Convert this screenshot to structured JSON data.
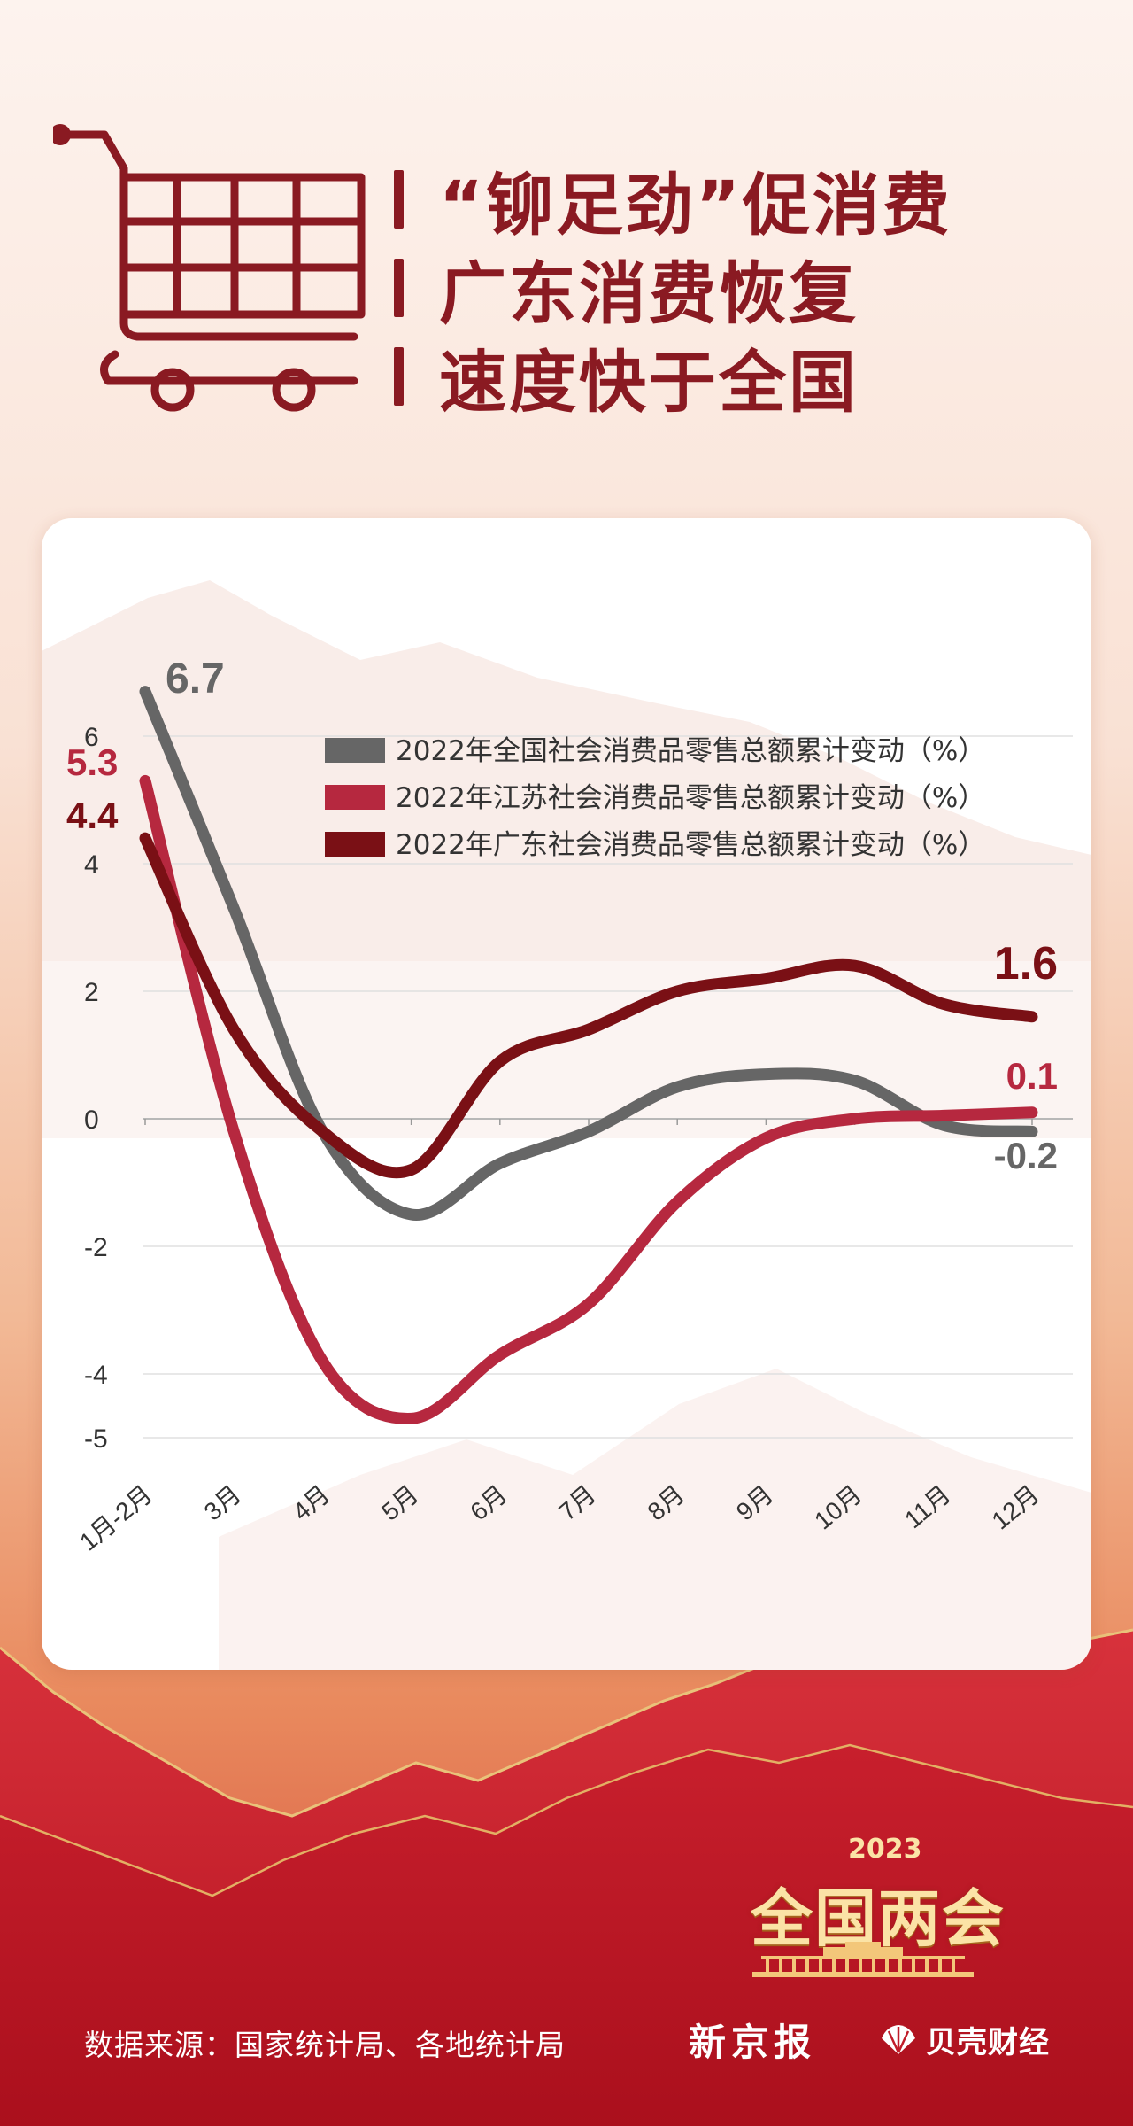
{
  "title": {
    "line1": "“铆足劲”促消费",
    "line2": "广东消费恢复",
    "line3": "速度快于全国"
  },
  "chart_data": {
    "type": "line",
    "categories": [
      "1月-2月",
      "3月",
      "4月",
      "5月",
      "6月",
      "7月",
      "8月",
      "9月",
      "10月",
      "11月",
      "12月"
    ],
    "ylim": [
      -5,
      7
    ],
    "yticks": [
      6,
      4,
      2,
      0,
      -2,
      -4,
      -5
    ],
    "grid": true,
    "legend_position": "top-right",
    "series": [
      {
        "name": "2022年全国社会消费品零售总额累计变动（%）",
        "color": "#666666",
        "values": [
          6.7,
          3.3,
          -0.2,
          -1.5,
          -0.7,
          -0.2,
          0.5,
          0.7,
          0.6,
          -0.1,
          -0.2
        ]
      },
      {
        "name": "2022年江苏社会消费品零售总额累计变动（%）",
        "color": "#b6283f",
        "values": [
          5.3,
          -0.2,
          -3.8,
          -4.7,
          -3.7,
          -2.9,
          -1.3,
          -0.3,
          0.0,
          0.05,
          0.1
        ]
      },
      {
        "name": "2022年广东社会消费品零售总额累计变动（%）",
        "color": "#7a1015",
        "values": [
          4.4,
          1.4,
          -0.2,
          -0.8,
          0.9,
          1.4,
          2.0,
          2.2,
          2.4,
          1.8,
          1.6
        ]
      }
    ],
    "data_labels": {
      "start": [
        "6.7",
        "5.3",
        "4.4"
      ],
      "end": [
        "-0.2",
        "0.1",
        "1.6"
      ]
    }
  },
  "footer": {
    "source": "数据来源：国家统计局、各地统计局",
    "paper": "新京报",
    "brand": "贝壳财经"
  },
  "event": {
    "year": "2023",
    "name": "全国两会"
  }
}
